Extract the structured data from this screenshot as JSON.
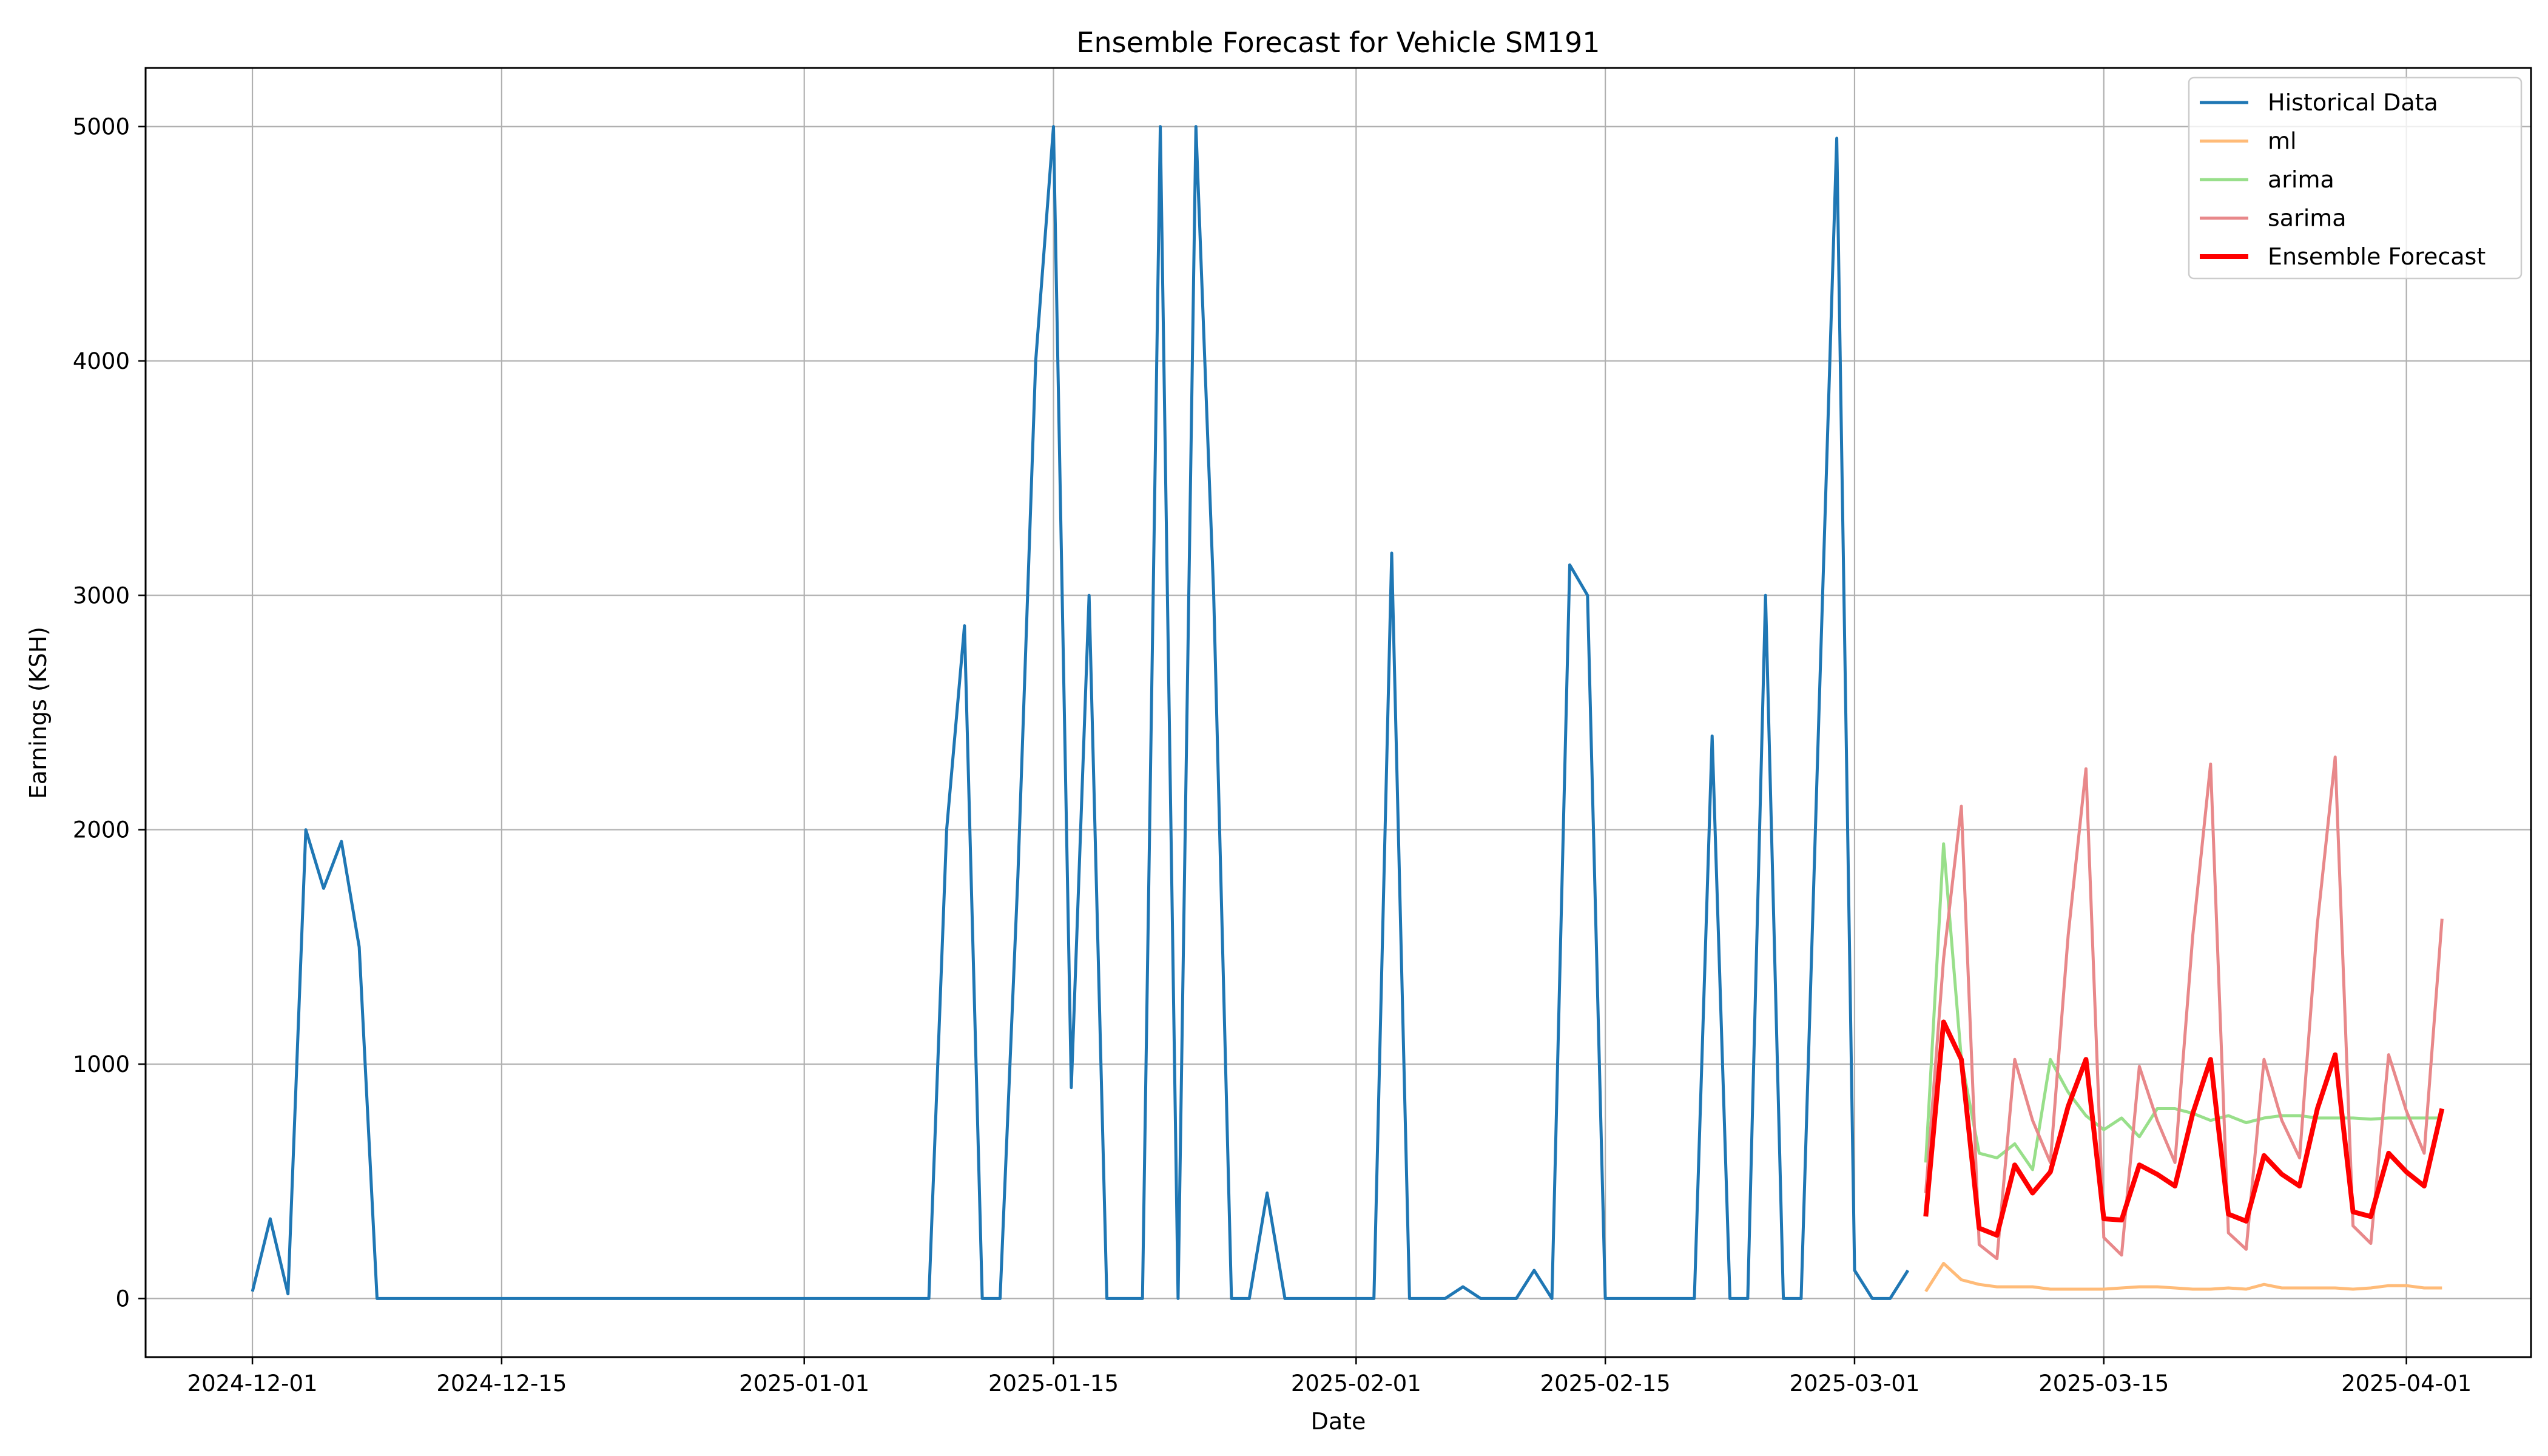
{
  "chart_data": {
    "type": "line",
    "title": "Ensemble Forecast for Vehicle SM191",
    "xlabel": "Date",
    "ylabel": "Earnings (KSH)",
    "x_range": [
      "2024-11-25",
      "2025-04-08"
    ],
    "ylim": [
      -250,
      5250
    ],
    "x_ticks": [
      "2024-12-01",
      "2024-12-15",
      "2025-01-01",
      "2025-01-15",
      "2025-02-01",
      "2025-02-15",
      "2025-03-01",
      "2025-03-15",
      "2025-04-01"
    ],
    "y_ticks": [
      0,
      1000,
      2000,
      3000,
      4000,
      5000
    ],
    "grid": true,
    "legend_position": "upper right",
    "series": [
      {
        "name": "Historical Data",
        "color": "#1f77b4",
        "points": [
          [
            "2024-12-01",
            30
          ],
          [
            "2024-12-02",
            340
          ],
          [
            "2024-12-03",
            20
          ],
          [
            "2024-12-04",
            2000
          ],
          [
            "2024-12-05",
            1750
          ],
          [
            "2024-12-06",
            1950
          ],
          [
            "2024-12-07",
            1500
          ],
          [
            "2024-12-08",
            0
          ],
          [
            "2024-12-15",
            0
          ],
          [
            "2025-01-01",
            0
          ],
          [
            "2025-01-08",
            0
          ],
          [
            "2025-01-09",
            2000
          ],
          [
            "2025-01-10",
            2870
          ],
          [
            "2025-01-11",
            0
          ],
          [
            "2025-01-12",
            0
          ],
          [
            "2025-01-13",
            1800
          ],
          [
            "2025-01-14",
            4000
          ],
          [
            "2025-01-15",
            5000
          ],
          [
            "2025-01-16",
            900
          ],
          [
            "2025-01-17",
            3000
          ],
          [
            "2025-01-18",
            0
          ],
          [
            "2025-01-19",
            0
          ],
          [
            "2025-01-20",
            0
          ],
          [
            "2025-01-21",
            5000
          ],
          [
            "2025-01-22",
            0
          ],
          [
            "2025-01-23",
            5000
          ],
          [
            "2025-01-24",
            3000
          ],
          [
            "2025-01-25",
            0
          ],
          [
            "2025-01-26",
            0
          ],
          [
            "2025-01-27",
            450
          ],
          [
            "2025-01-28",
            0
          ],
          [
            "2025-02-01",
            0
          ],
          [
            "2025-02-02",
            0
          ],
          [
            "2025-02-03",
            3180
          ],
          [
            "2025-02-04",
            0
          ],
          [
            "2025-02-05",
            0
          ],
          [
            "2025-02-06",
            0
          ],
          [
            "2025-02-07",
            50
          ],
          [
            "2025-02-08",
            0
          ],
          [
            "2025-02-09",
            0
          ],
          [
            "2025-02-10",
            0
          ],
          [
            "2025-02-11",
            120
          ],
          [
            "2025-02-12",
            0
          ],
          [
            "2025-02-13",
            3130
          ],
          [
            "2025-02-14",
            3000
          ],
          [
            "2025-02-15",
            0
          ],
          [
            "2025-02-20",
            0
          ],
          [
            "2025-02-21",
            2400
          ],
          [
            "2025-02-22",
            0
          ],
          [
            "2025-02-23",
            0
          ],
          [
            "2025-02-24",
            3000
          ],
          [
            "2025-02-25",
            0
          ],
          [
            "2025-02-26",
            0
          ],
          [
            "2025-02-27",
            2500
          ],
          [
            "2025-02-28",
            4950
          ],
          [
            "2025-03-01",
            120
          ],
          [
            "2025-03-02",
            0
          ],
          [
            "2025-03-03",
            0
          ],
          [
            "2025-03-04",
            120
          ]
        ]
      },
      {
        "name": "ml",
        "color": "#ffbb78",
        "points": [
          [
            "2025-03-05",
            30
          ],
          [
            "2025-03-06",
            150
          ],
          [
            "2025-03-07",
            80
          ],
          [
            "2025-03-08",
            60
          ],
          [
            "2025-03-09",
            50
          ],
          [
            "2025-03-10",
            50
          ],
          [
            "2025-03-11",
            50
          ],
          [
            "2025-03-12",
            40
          ],
          [
            "2025-03-13",
            40
          ],
          [
            "2025-03-14",
            40
          ],
          [
            "2025-03-15",
            40
          ],
          [
            "2025-03-16",
            45
          ],
          [
            "2025-03-17",
            50
          ],
          [
            "2025-03-18",
            50
          ],
          [
            "2025-03-19",
            45
          ],
          [
            "2025-03-20",
            40
          ],
          [
            "2025-03-21",
            40
          ],
          [
            "2025-03-22",
            45
          ],
          [
            "2025-03-23",
            40
          ],
          [
            "2025-03-24",
            60
          ],
          [
            "2025-03-25",
            45
          ],
          [
            "2025-03-26",
            45
          ],
          [
            "2025-03-27",
            45
          ],
          [
            "2025-03-28",
            45
          ],
          [
            "2025-03-29",
            40
          ],
          [
            "2025-03-30",
            45
          ],
          [
            "2025-03-31",
            55
          ],
          [
            "2025-04-01",
            55
          ],
          [
            "2025-04-02",
            45
          ],
          [
            "2025-04-03",
            45
          ]
        ]
      },
      {
        "name": "arima",
        "color": "#98df8a",
        "points": [
          [
            "2025-03-05",
            580
          ],
          [
            "2025-03-06",
            1940
          ],
          [
            "2025-03-07",
            1020
          ],
          [
            "2025-03-08",
            620
          ],
          [
            "2025-03-09",
            600
          ],
          [
            "2025-03-10",
            660
          ],
          [
            "2025-03-11",
            550
          ],
          [
            "2025-03-12",
            1020
          ],
          [
            "2025-03-13",
            880
          ],
          [
            "2025-03-14",
            780
          ],
          [
            "2025-03-15",
            720
          ],
          [
            "2025-03-16",
            770
          ],
          [
            "2025-03-17",
            690
          ],
          [
            "2025-03-18",
            810
          ],
          [
            "2025-03-19",
            810
          ],
          [
            "2025-03-20",
            790
          ],
          [
            "2025-03-21",
            760
          ],
          [
            "2025-03-22",
            780
          ],
          [
            "2025-03-23",
            750
          ],
          [
            "2025-03-24",
            770
          ],
          [
            "2025-03-25",
            780
          ],
          [
            "2025-03-26",
            780
          ],
          [
            "2025-03-27",
            770
          ],
          [
            "2025-03-28",
            770
          ],
          [
            "2025-03-29",
            770
          ],
          [
            "2025-03-30",
            765
          ],
          [
            "2025-03-31",
            770
          ],
          [
            "2025-04-01",
            770
          ],
          [
            "2025-04-02",
            770
          ],
          [
            "2025-04-03",
            770
          ]
        ]
      },
      {
        "name": "sarima",
        "color": "#e8888a",
        "points": [
          [
            "2025-03-05",
            450
          ],
          [
            "2025-03-06",
            1450
          ],
          [
            "2025-03-07",
            2100
          ],
          [
            "2025-03-08",
            230
          ],
          [
            "2025-03-09",
            170
          ],
          [
            "2025-03-10",
            1020
          ],
          [
            "2025-03-11",
            760
          ],
          [
            "2025-03-12",
            580
          ],
          [
            "2025-03-13",
            1550
          ],
          [
            "2025-03-14",
            2260
          ],
          [
            "2025-03-15",
            260
          ],
          [
            "2025-03-16",
            185
          ],
          [
            "2025-03-17",
            990
          ],
          [
            "2025-03-18",
            760
          ],
          [
            "2025-03-19",
            580
          ],
          [
            "2025-03-20",
            1550
          ],
          [
            "2025-03-21",
            2280
          ],
          [
            "2025-03-22",
            280
          ],
          [
            "2025-03-23",
            210
          ],
          [
            "2025-03-24",
            1020
          ],
          [
            "2025-03-25",
            760
          ],
          [
            "2025-03-26",
            600
          ],
          [
            "2025-03-27",
            1600
          ],
          [
            "2025-03-28",
            2310
          ],
          [
            "2025-03-29",
            310
          ],
          [
            "2025-03-30",
            235
          ],
          [
            "2025-03-31",
            1040
          ],
          [
            "2025-04-01",
            800
          ],
          [
            "2025-04-02",
            620
          ],
          [
            "2025-04-03",
            1620
          ]
        ]
      },
      {
        "name": "Ensemble Forecast",
        "color": "#ff0000",
        "points": [
          [
            "2025-03-05",
            350
          ],
          [
            "2025-03-06",
            1180
          ],
          [
            "2025-03-07",
            1020
          ],
          [
            "2025-03-08",
            300
          ],
          [
            "2025-03-09",
            270
          ],
          [
            "2025-03-10",
            570
          ],
          [
            "2025-03-11",
            450
          ],
          [
            "2025-03-12",
            540
          ],
          [
            "2025-03-13",
            820
          ],
          [
            "2025-03-14",
            1020
          ],
          [
            "2025-03-15",
            340
          ],
          [
            "2025-03-16",
            335
          ],
          [
            "2025-03-17",
            570
          ],
          [
            "2025-03-18",
            530
          ],
          [
            "2025-03-19",
            480
          ],
          [
            "2025-03-20",
            790
          ],
          [
            "2025-03-21",
            1020
          ],
          [
            "2025-03-22",
            360
          ],
          [
            "2025-03-23",
            330
          ],
          [
            "2025-03-24",
            610
          ],
          [
            "2025-03-25",
            530
          ],
          [
            "2025-03-26",
            480
          ],
          [
            "2025-03-27",
            810
          ],
          [
            "2025-03-28",
            1040
          ],
          [
            "2025-03-29",
            370
          ],
          [
            "2025-03-30",
            350
          ],
          [
            "2025-03-31",
            620
          ],
          [
            "2025-04-01",
            540
          ],
          [
            "2025-04-02",
            480
          ],
          [
            "2025-04-03",
            810
          ]
        ]
      }
    ]
  }
}
